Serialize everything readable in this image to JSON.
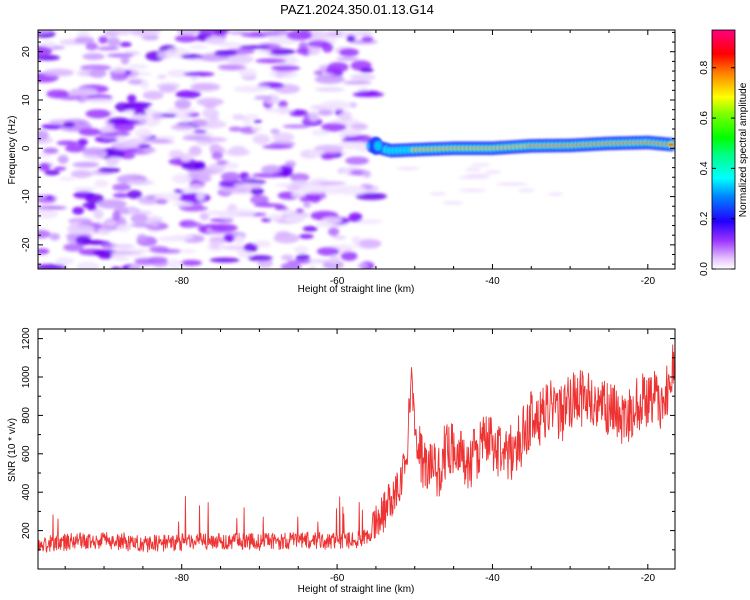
{
  "title": "PAZ1.2024.350.01.13.G14",
  "chart_data": [
    {
      "type": "heatmap",
      "title": "PAZ1.2024.350.01.13.G14",
      "xlabel": "Height of straight line (km)",
      "ylabel": "Frequency (Hz)",
      "xlim": [
        -98.5,
        -16.5
      ],
      "ylim": [
        -25,
        24.5
      ],
      "xticks": [
        -80,
        -60,
        -40,
        -20
      ],
      "yticks": [
        -20,
        -10,
        0,
        10,
        20
      ],
      "colorbar": {
        "label": "Normalized spectral amplitude",
        "range": [
          0.0,
          0.95
        ],
        "ticks": [
          0.0,
          0.2,
          0.4,
          0.6,
          0.8
        ],
        "colormap": [
          "#ff00ff",
          "#7a00ff",
          "#0000ff",
          "#0080ff",
          "#00ffff",
          "#00ff80",
          "#00ff00",
          "#80ff00",
          "#ffff00",
          "#ff8000",
          "#ff0000",
          "#ff0080"
        ]
      },
      "noise_region_x": [
        -98.5,
        -55.5
      ],
      "signal_track": {
        "x": [
          -55.5,
          -53,
          -50,
          -45,
          -40,
          -35,
          -30,
          -25,
          -20,
          -16.5
        ],
        "frequency": [
          0.5,
          -0.5,
          -0.3,
          0.0,
          0.0,
          0.5,
          0.6,
          1.0,
          1.2,
          0.7
        ],
        "amplitude": [
          0.25,
          0.45,
          0.75,
          0.85,
          0.85,
          0.88,
          0.9,
          0.92,
          0.93,
          0.95
        ]
      }
    },
    {
      "type": "line",
      "xlabel": "Height of straight line (km)",
      "ylabel": "SNR (10 * v/v)",
      "xlim": [
        -98.5,
        -16.5
      ],
      "ylim": [
        0,
        1250
      ],
      "xticks": [
        -80,
        -60,
        -40,
        -20
      ],
      "yticks": [
        200,
        400,
        600,
        800,
        1000,
        1200
      ],
      "line_color": "#ee3333",
      "series": [
        {
          "x": [
            -98.5,
            -95,
            -90,
            -85,
            -80,
            -75,
            -70,
            -65,
            -60,
            -56,
            -55,
            -54,
            -53,
            -52,
            -51,
            -50.5,
            -50,
            -49,
            -48,
            -47,
            -46,
            -45,
            -44,
            -43,
            -42,
            -41,
            -40,
            -39,
            -38,
            -37,
            -36,
            -35,
            -34,
            -33,
            -32,
            -31,
            -30,
            -29,
            -28,
            -27,
            -26,
            -25,
            -24,
            -23,
            -22,
            -21,
            -20,
            -19,
            -18,
            -17,
            -16.5
          ],
          "values": [
            120,
            140,
            150,
            130,
            140,
            145,
            140,
            150,
            145,
            160,
            250,
            300,
            380,
            450,
            600,
            1000,
            750,
            550,
            520,
            500,
            620,
            650,
            580,
            550,
            600,
            700,
            650,
            620,
            580,
            640,
            700,
            800,
            780,
            820,
            850,
            800,
            870,
            900,
            880,
            860,
            820,
            850,
            800,
            780,
            820,
            860,
            900,
            880,
            850,
            1000,
            1050
          ]
        }
      ]
    }
  ]
}
